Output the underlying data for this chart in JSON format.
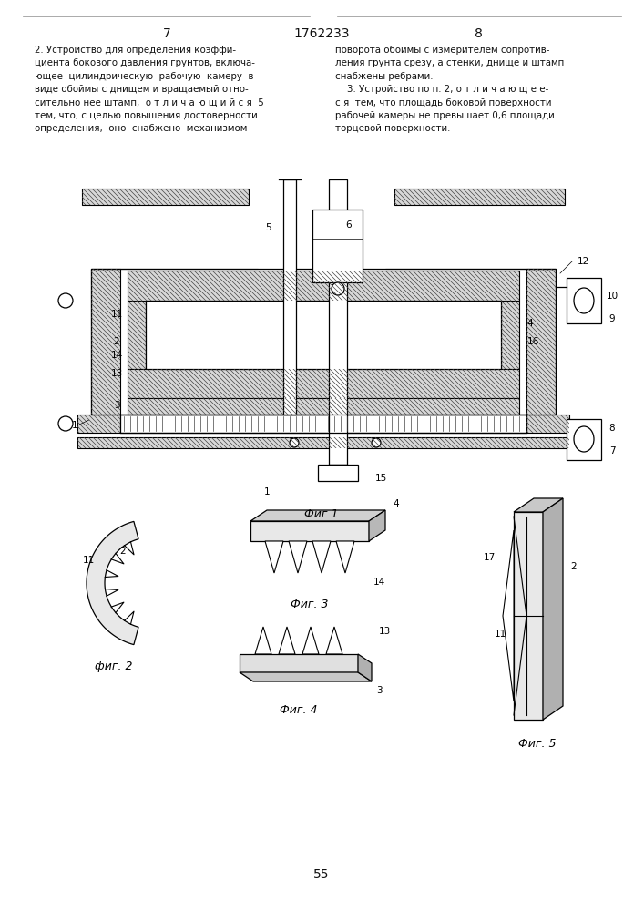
{
  "page_left": "7",
  "page_center": "1762233",
  "page_right": "8",
  "page_bottom": "55",
  "fig1_label": "Фиг 1",
  "fig2_label": "фиг. 2",
  "fig3_label": "Фиг. 3",
  "fig4_label": "Фиг. 4",
  "fig5_label": "Фиг. 5",
  "bg_color": "#ffffff",
  "lc": "#000000",
  "hc": "#444444",
  "text_color": "#111111"
}
